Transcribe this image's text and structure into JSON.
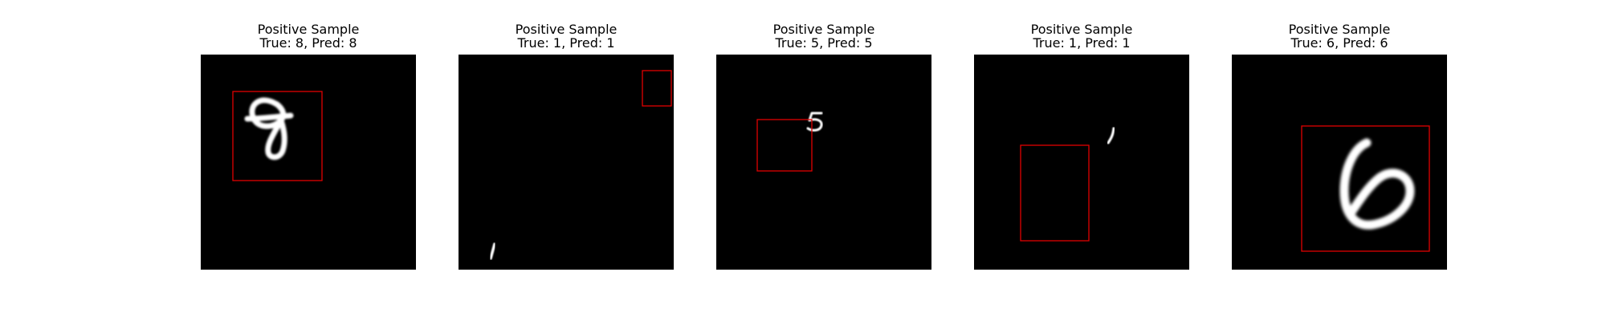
{
  "panels": [
    {
      "title": "Positive Sample",
      "subtitle": "True: 8, Pred: 8",
      "digit_icon": "digit-8-icon",
      "box_color": "#e00000"
    },
    {
      "title": "Positive Sample",
      "subtitle": "True: 1, Pred: 1",
      "digit_icon": "digit-1-icon",
      "box_color": "#e00000"
    },
    {
      "title": "Positive Sample",
      "subtitle": "True: 5, Pred: 5",
      "digit_icon": "digit-5-icon",
      "box_color": "#e00000"
    },
    {
      "title": "Positive Sample",
      "subtitle": "True: 1, Pred: 1",
      "digit_icon": "digit-1-icon",
      "box_color": "#e00000"
    },
    {
      "title": "Positive Sample",
      "subtitle": "True: 6, Pred: 6",
      "digit_icon": "digit-6-icon",
      "box_color": "#e00000"
    }
  ]
}
